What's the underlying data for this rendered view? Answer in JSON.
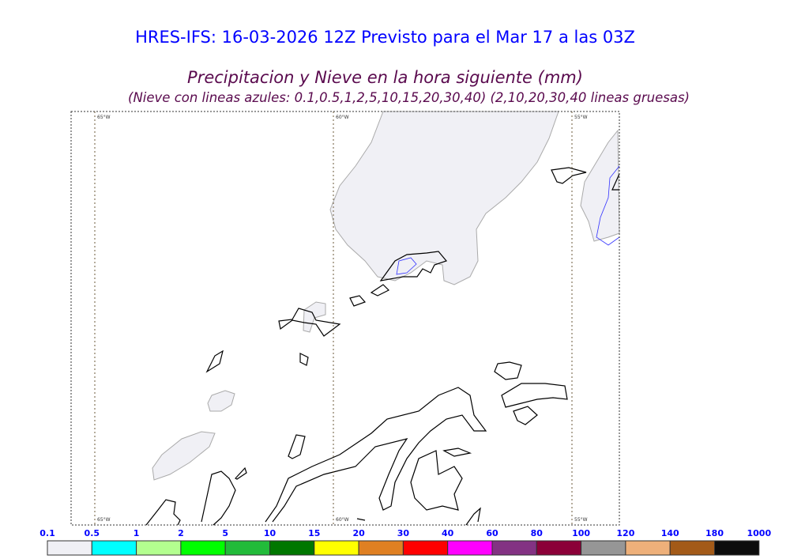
{
  "header": {
    "title": "HRES-IFS: 16-03-2026 12Z Previsto para el Mar 17 a las 03Z",
    "subtitle": "Precipitacion y Nieve en la hora siguiente (mm)",
    "note": "(Nieve con lineas azules: 0.1,0.5,1,2,5,10,15,20,30,40)  (2,10,20,30,40 lineas gruesas)"
  },
  "map": {
    "meridians_top": [
      "65°W",
      "60°W",
      "55°W"
    ],
    "meridians_bottom": [
      "65°W",
      "60°W",
      "55°W"
    ],
    "colors": {
      "land": "#000000",
      "light_precip": "#f0f0f5",
      "snow_contour": "#3333ff",
      "meridian": "#6b5a3a"
    }
  },
  "legend": {
    "labels": [
      "0.1",
      "0.5",
      "1",
      "2",
      "5",
      "10",
      "15",
      "20",
      "30",
      "40",
      "60",
      "80",
      "100",
      "120",
      "140",
      "180",
      "1000"
    ],
    "colors": [
      "#f0f0f5",
      "#00ffff",
      "#b3ff8f",
      "#00ff00",
      "#22bb3a",
      "#007700",
      "#ffff00",
      "#e08022",
      "#ff0000",
      "#ff00ff",
      "#833283",
      "#8b0038",
      "#969696",
      "#eeb07a",
      "#a35a18",
      "#0c0c0c"
    ]
  }
}
